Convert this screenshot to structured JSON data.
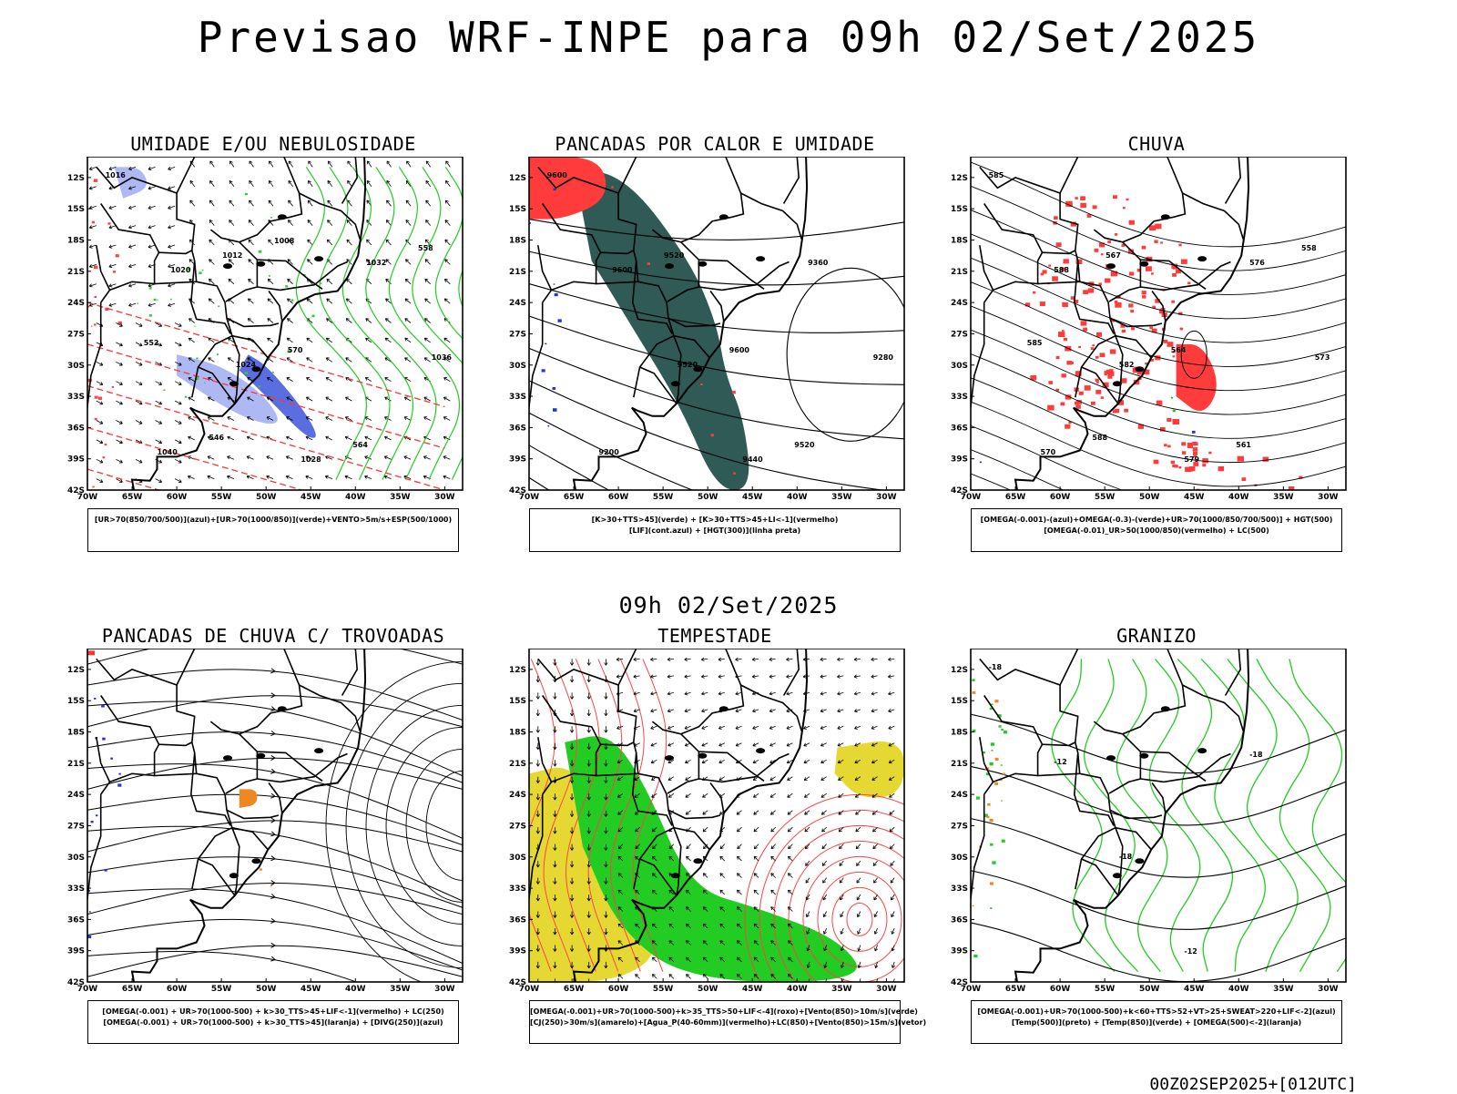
{
  "header": {
    "title": "Previsao WRF-INPE  para 09h 02/Set/2025",
    "mid_date": "09h 02/Set/2025",
    "run": "00Z02SEP2025+[012UTC]"
  },
  "axes": {
    "lat_labels": [
      "12S",
      "15S",
      "18S",
      "21S",
      "24S",
      "27S",
      "30S",
      "33S",
      "36S",
      "39S",
      "42S"
    ],
    "lon_labels": [
      "70W",
      "65W",
      "60W",
      "55W",
      "50W",
      "45W",
      "40W",
      "35W",
      "30W"
    ]
  },
  "panels": [
    {
      "title": "UMIDADE E/OU NEBULOSIDADE",
      "legend": [
        "[UR>70(850/700/500)](azul)+[UR>70(1000/850)](verde)+VENTO>5m/s+ESP(500/1000)"
      ],
      "contour_labels": [
        "1016",
        "1020",
        "1024",
        "1028",
        "1032",
        "1036",
        "1040",
        "1012",
        "570",
        "564",
        "558",
        "552",
        "546",
        "1008"
      ],
      "fill_colors": [
        "#9aa8f0",
        "#5a6ee0"
      ],
      "line_colors": [
        "#00c000",
        "#ff3333",
        "#000000"
      ]
    },
    {
      "title": "PANCADAS POR CALOR E UMIDADE",
      "legend": [
        "[K>30+TTS>45](verde) + [K>30+TTS>45+LI<-1](vermelho)",
        "[LIF](cont.azul) + [HGT(300)](linha preta)"
      ],
      "contour_labels": [
        "9600",
        "9600",
        "9520",
        "9440",
        "9360",
        "9280",
        "9200",
        "9520",
        "9600",
        "9520"
      ],
      "fill_colors": [
        "#2f5a55",
        "#ff3b3b",
        "#2233dd"
      ]
    },
    {
      "title": "CHUVA",
      "legend": [
        "[OMEGA(-0.001)-(azul)+OMEGA(-0.3)-(verde)+UR>70(1000/850/700/500)] + HGT(500)",
        "[OMEGA(-0.01)_UR>50(1000/850)(vermelho) + LC(500)"
      ],
      "contour_labels": [
        "585",
        "588",
        "582",
        "579",
        "576",
        "573",
        "570",
        "567",
        "564",
        "561",
        "558",
        "585",
        "588"
      ],
      "fill_colors": [
        "#ff3b3b",
        "#2233dd",
        "#22bb22"
      ]
    },
    {
      "title": "PANCADAS DE CHUVA C/ TROVOADAS",
      "legend": [
        "[OMEGA(-0.001) + UR>70(1000-500) + k>30_TTS>45+LIF<-1](vermelho) + LC(250)",
        "[OMEGA(-0.001) + UR>70(1000-500) + k>30_TTS>45](laranja) + [DIVG(250)](azul)"
      ],
      "fill_colors": [
        "#2233dd",
        "#ee8822",
        "#ff3333"
      ]
    },
    {
      "title": "TEMPESTADE",
      "legend": [
        "[OMEGA(-0.001)+UR>70(1000-500)+k>35_TTS>50+LIF<-4](roxo)+[Vento(850)>10m/s](verde)",
        "[CJ(250)>30m/s](amarelo)+[Agua_P(40-60mm)](vermelho)+LC(850)+[Vento(850)>15m/s](vetor)"
      ],
      "fill_colors": [
        "#e6d832",
        "#22cc22",
        "#ff3333"
      ]
    },
    {
      "title": "GRANIZO",
      "legend": [
        "[OMEGA(-0.001)+UR>70(1000-500)+k<60+TTS>52+VT>25+SWEAT>220+LIF<-2](azul)",
        "[Temp(500)](preto) + [Temp(850)](verde) + [OMEGA(500)<-2](laranja)"
      ],
      "contour_labels": [
        "-18",
        "-12",
        "-18",
        "-12",
        "-18"
      ],
      "fill_colors": [
        "#22cc22",
        "#ee8822"
      ]
    }
  ]
}
